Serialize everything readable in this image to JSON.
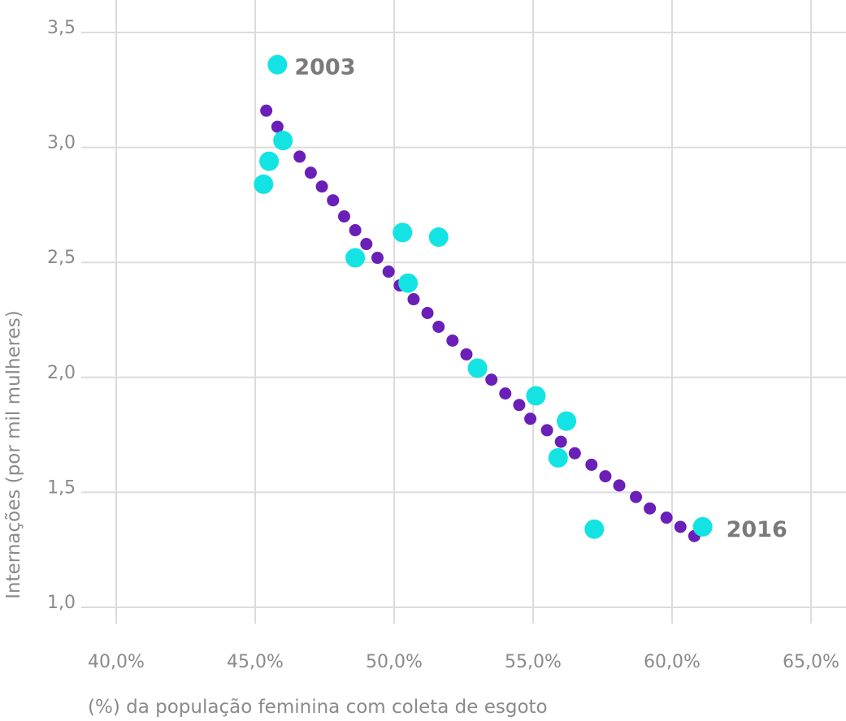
{
  "chart_data": {
    "type": "scatter",
    "xlabel": "(%) da população feminina com coleta de esgoto",
    "ylabel": "Internações (por mil mulheres)",
    "xlim": [
      40,
      65
    ],
    "ylim": [
      1.0,
      3.5
    ],
    "x_ticks": [
      "40,0%",
      "45,0%",
      "50,0%",
      "55,0%",
      "60,0%",
      "65,0%"
    ],
    "y_ticks": [
      "1,0",
      "1,5",
      "2,0",
      "2,5",
      "3,0",
      "3,5"
    ],
    "grid": true,
    "trend_color": "#6a1fb8",
    "point_color": "#13e3e3",
    "trend_line": {
      "style": "dotted",
      "points": [
        [
          45.4,
          3.16
        ],
        [
          45.8,
          3.09
        ],
        [
          46.1,
          3.02
        ],
        [
          46.6,
          2.96
        ],
        [
          47.0,
          2.89
        ],
        [
          47.4,
          2.83
        ],
        [
          47.8,
          2.77
        ],
        [
          48.2,
          2.7
        ],
        [
          48.6,
          2.64
        ],
        [
          49.0,
          2.58
        ],
        [
          49.4,
          2.52
        ],
        [
          49.8,
          2.46
        ],
        [
          50.2,
          2.4
        ],
        [
          50.7,
          2.34
        ],
        [
          51.2,
          2.28
        ],
        [
          51.6,
          2.22
        ],
        [
          52.1,
          2.16
        ],
        [
          52.6,
          2.1
        ],
        [
          53.1,
          2.05
        ],
        [
          53.5,
          1.99
        ],
        [
          54.0,
          1.93
        ],
        [
          54.5,
          1.88
        ],
        [
          54.9,
          1.82
        ],
        [
          55.5,
          1.77
        ],
        [
          56.0,
          1.72
        ],
        [
          56.5,
          1.67
        ],
        [
          57.1,
          1.62
        ],
        [
          57.6,
          1.57
        ],
        [
          58.1,
          1.53
        ],
        [
          58.7,
          1.48
        ],
        [
          59.2,
          1.43
        ],
        [
          59.8,
          1.39
        ],
        [
          60.3,
          1.35
        ],
        [
          60.8,
          1.31
        ]
      ]
    },
    "series": [
      {
        "points": [
          {
            "x": 45.8,
            "y": 3.36,
            "label": "2003"
          },
          {
            "x": 45.3,
            "y": 2.84,
            "label": ""
          },
          {
            "x": 45.5,
            "y": 2.94,
            "label": ""
          },
          {
            "x": 46.0,
            "y": 3.03,
            "label": ""
          },
          {
            "x": 48.6,
            "y": 2.52,
            "label": ""
          },
          {
            "x": 50.3,
            "y": 2.63,
            "label": ""
          },
          {
            "x": 50.5,
            "y": 2.41,
            "label": ""
          },
          {
            "x": 51.6,
            "y": 2.61,
            "label": ""
          },
          {
            "x": 53.0,
            "y": 2.04,
            "label": ""
          },
          {
            "x": 55.1,
            "y": 1.92,
            "label": ""
          },
          {
            "x": 56.2,
            "y": 1.81,
            "label": ""
          },
          {
            "x": 55.9,
            "y": 1.65,
            "label": ""
          },
          {
            "x": 57.2,
            "y": 1.34,
            "label": ""
          },
          {
            "x": 61.1,
            "y": 1.35,
            "label": "2016"
          }
        ]
      }
    ]
  }
}
